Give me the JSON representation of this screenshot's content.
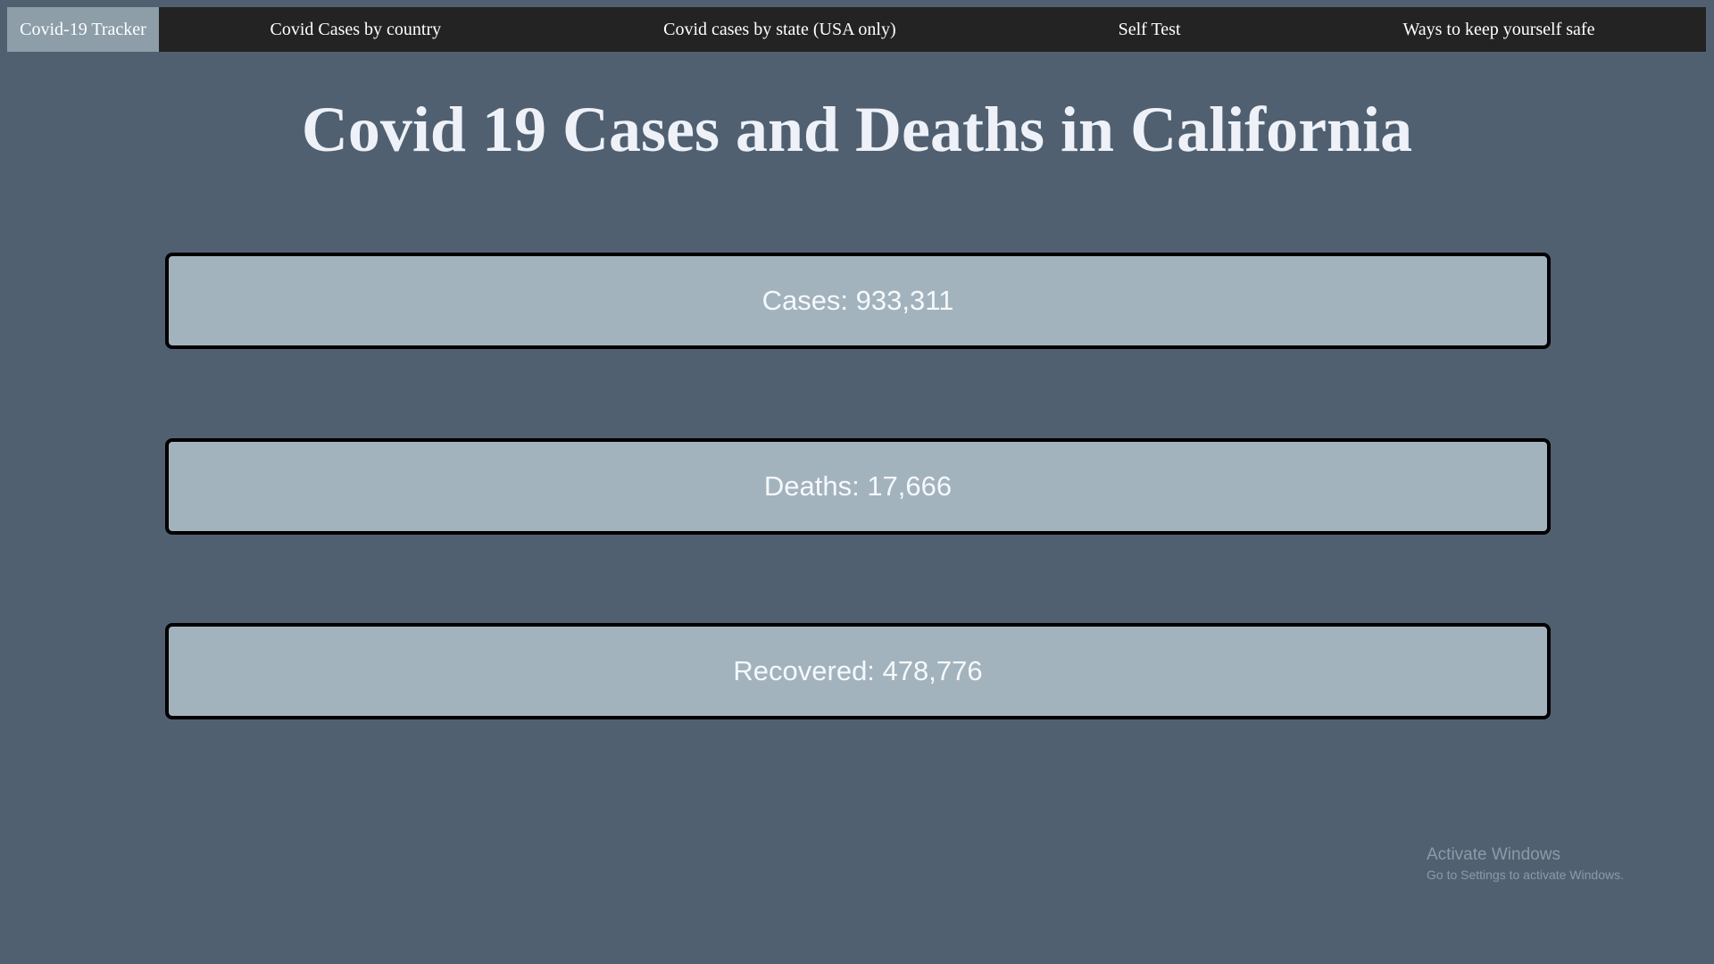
{
  "nav": {
    "brand": "Covid-19 Tracker",
    "links": [
      "Covid Cases by country",
      "Covid cases by state (USA only)",
      "Self Test",
      "Ways to keep yourself safe"
    ]
  },
  "page": {
    "title": "Covid 19 Cases and Deaths in California"
  },
  "stats": [
    {
      "label": "Cases:",
      "value": "933,311"
    },
    {
      "label": "Deaths:",
      "value": "17,666"
    },
    {
      "label": "Recovered:",
      "value": "478,776"
    }
  ],
  "watermark": {
    "title": "Activate Windows",
    "subtitle": "Go to Settings to activate Windows."
  },
  "colors": {
    "background": "#506071",
    "navbar": "#232323",
    "brand_bg": "#8d9ea9",
    "card_bg": "#a2b3bd",
    "card_border": "#000000",
    "title_text": "#eef2f8"
  }
}
